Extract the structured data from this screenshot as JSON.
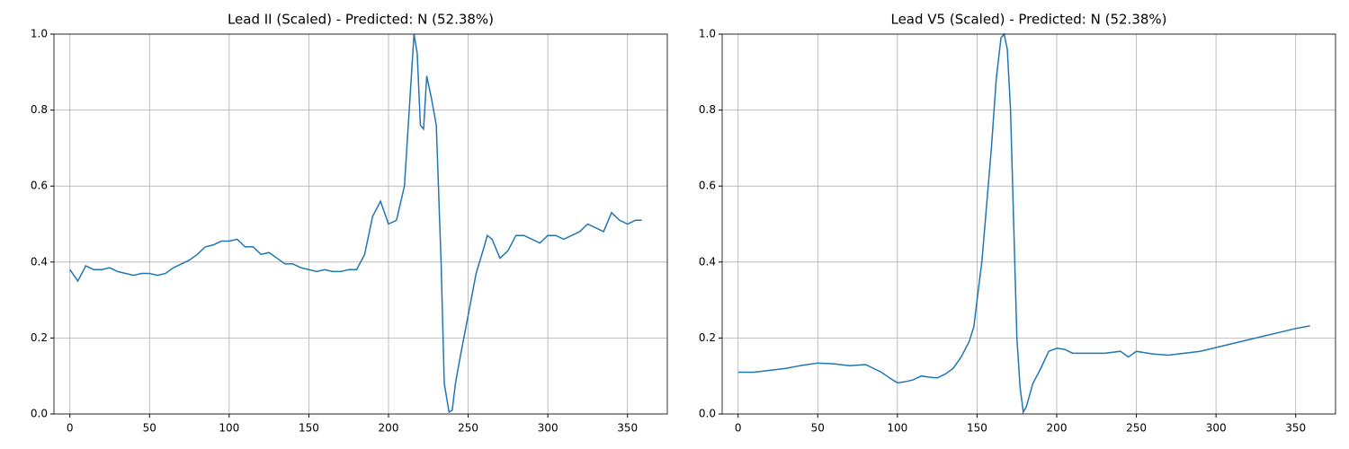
{
  "chart_data": [
    {
      "type": "line",
      "title": "Lead II (Scaled) - Predicted: N (52.38%)",
      "x": [
        0,
        5,
        10,
        15,
        20,
        25,
        30,
        35,
        40,
        45,
        50,
        55,
        60,
        65,
        70,
        75,
        80,
        85,
        90,
        95,
        100,
        105,
        110,
        115,
        120,
        125,
        130,
        135,
        140,
        145,
        150,
        155,
        160,
        165,
        170,
        175,
        180,
        185,
        190,
        195,
        200,
        205,
        210,
        213,
        216,
        218,
        220,
        222,
        224,
        227,
        230,
        233,
        235,
        238,
        240,
        242,
        245,
        250,
        255,
        260,
        262,
        265,
        270,
        275,
        280,
        285,
        290,
        295,
        300,
        305,
        310,
        315,
        320,
        325,
        330,
        335,
        340,
        345,
        350,
        355,
        359
      ],
      "series": [
        {
          "color": "#1f77b4",
          "values": [
            0.38,
            0.35,
            0.39,
            0.38,
            0.38,
            0.385,
            0.375,
            0.37,
            0.365,
            0.37,
            0.37,
            0.365,
            0.37,
            0.385,
            0.395,
            0.405,
            0.42,
            0.44,
            0.445,
            0.455,
            0.455,
            0.46,
            0.44,
            0.44,
            0.42,
            0.425,
            0.41,
            0.395,
            0.395,
            0.385,
            0.38,
            0.375,
            0.38,
            0.375,
            0.375,
            0.38,
            0.38,
            0.42,
            0.52,
            0.56,
            0.5,
            0.51,
            0.6,
            0.8,
            1.0,
            0.95,
            0.76,
            0.75,
            0.89,
            0.83,
            0.76,
            0.4,
            0.08,
            0.005,
            0.01,
            0.08,
            0.15,
            0.26,
            0.37,
            0.44,
            0.47,
            0.46,
            0.41,
            0.43,
            0.47,
            0.47,
            0.46,
            0.45,
            0.47,
            0.47,
            0.46,
            0.47,
            0.48,
            0.5,
            0.49,
            0.48,
            0.53,
            0.51,
            0.5,
            0.51,
            0.51
          ]
        }
      ],
      "xlim": [
        -10,
        375
      ],
      "ylim": [
        0,
        1
      ],
      "xticks": [
        0,
        50,
        100,
        150,
        200,
        250,
        300,
        350
      ],
      "yticks": [
        {
          "value": 0,
          "label": "0.0"
        },
        {
          "value": 0.2,
          "label": "0.2"
        },
        {
          "value": 0.4,
          "label": "0.4"
        },
        {
          "value": 0.6,
          "label": "0.6"
        },
        {
          "value": 0.8,
          "label": "0.8"
        },
        {
          "value": 1,
          "label": "1.0"
        }
      ],
      "grid": true
    },
    {
      "type": "line",
      "title": "Lead V5 (Scaled) - Predicted: N (52.38%)",
      "x": [
        0,
        10,
        20,
        30,
        40,
        50,
        60,
        70,
        80,
        85,
        90,
        95,
        100,
        105,
        110,
        115,
        120,
        125,
        130,
        135,
        140,
        145,
        148,
        150,
        153,
        156,
        159,
        162,
        165,
        167,
        169,
        171,
        173,
        175,
        177,
        179,
        181,
        185,
        190,
        195,
        200,
        205,
        210,
        220,
        230,
        240,
        245,
        250,
        260,
        270,
        280,
        290,
        300,
        310,
        320,
        330,
        340,
        350,
        359
      ],
      "series": [
        {
          "color": "#1f77b4",
          "values": [
            0.11,
            0.11,
            0.115,
            0.12,
            0.128,
            0.134,
            0.132,
            0.127,
            0.13,
            0.12,
            0.11,
            0.095,
            0.082,
            0.085,
            0.09,
            0.1,
            0.097,
            0.095,
            0.105,
            0.12,
            0.15,
            0.19,
            0.23,
            0.3,
            0.4,
            0.55,
            0.7,
            0.88,
            0.99,
            1.0,
            0.96,
            0.8,
            0.5,
            0.2,
            0.07,
            0.005,
            0.02,
            0.08,
            0.12,
            0.165,
            0.173,
            0.17,
            0.16,
            0.16,
            0.16,
            0.165,
            0.15,
            0.165,
            0.158,
            0.155,
            0.16,
            0.165,
            0.175,
            0.185,
            0.195,
            0.205,
            0.215,
            0.225,
            0.232
          ]
        }
      ],
      "xlim": [
        -10,
        375
      ],
      "ylim": [
        0,
        1
      ],
      "xticks": [
        0,
        50,
        100,
        150,
        200,
        250,
        300,
        350
      ],
      "yticks": [
        {
          "value": 0,
          "label": "0.0"
        },
        {
          "value": 0.2,
          "label": "0.2"
        },
        {
          "value": 0.4,
          "label": "0.4"
        },
        {
          "value": 0.6,
          "label": "0.6"
        },
        {
          "value": 0.8,
          "label": "0.8"
        },
        {
          "value": 1,
          "label": "1.0"
        }
      ],
      "grid": true
    }
  ]
}
